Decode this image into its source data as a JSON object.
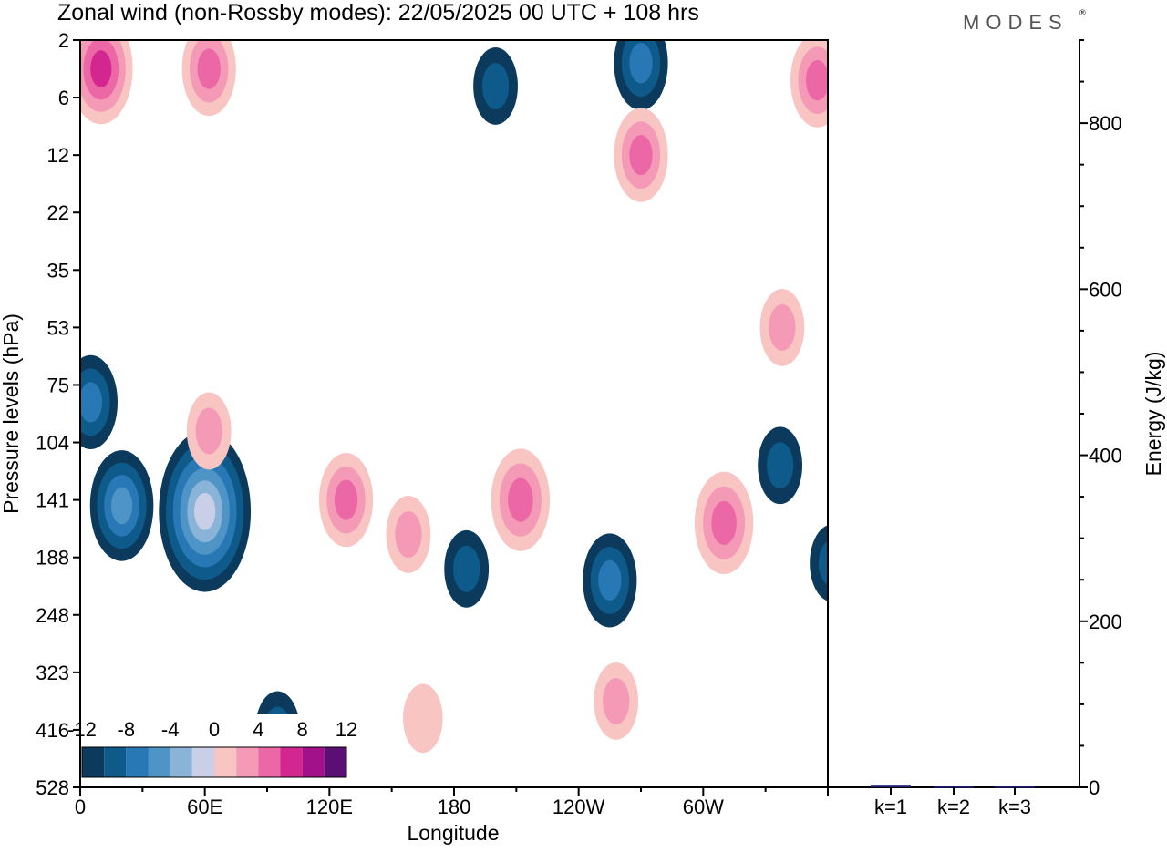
{
  "title": "Zonal wind (non-Rossby modes):  22/05/2025  00 UTC  + 108 hrs",
  "brand": "MODES",
  "colors": {
    "neg": [
      "#0b3a5c",
      "#0e5a8a",
      "#2878b5",
      "#4e94c6",
      "#8ab3d8",
      "#c9cfe6"
    ],
    "pos": [
      "#f8c5c3",
      "#f49ab7",
      "#ec67a6",
      "#d4268f",
      "#a3118a",
      "#5b0e73"
    ]
  },
  "chart_data": [
    {
      "type": "heatmap",
      "xlabel": "Longitude",
      "ylabel": "Pressure levels (hPa)",
      "x_ticks": [
        "0",
        "60E",
        "120E",
        "180",
        "120W",
        "60W"
      ],
      "y_ticks": [
        "2",
        "6",
        "12",
        "22",
        "35",
        "53",
        "75",
        "104",
        "141",
        "188",
        "248",
        "323",
        "416",
        "528"
      ],
      "colorbar": {
        "labels": [
          "-12",
          "-8",
          "-4",
          "0",
          "4",
          "8",
          "12"
        ],
        "levels": [
          -12,
          -10,
          -8,
          -6,
          -4,
          -2,
          0,
          2,
          4,
          6,
          8,
          10,
          12
        ]
      },
      "features": [
        {
          "lon": 60,
          "lev": 8.2,
          "value": -14
        },
        {
          "lon": 20,
          "lev": 8.1,
          "value": -8
        },
        {
          "lon": 5,
          "lev": 6.3,
          "value": -6
        },
        {
          "lon": 95,
          "lev": 12.0,
          "value": -4
        },
        {
          "lon": 270,
          "lev": 0.4,
          "value": -6
        },
        {
          "lon": 200,
          "lev": 0.8,
          "value": -4
        },
        {
          "lon": 255,
          "lev": 9.4,
          "value": -6
        },
        {
          "lon": 186,
          "lev": 9.2,
          "value": -4
        },
        {
          "lon": 337,
          "lev": 7.4,
          "value": -4
        },
        {
          "lon": 362,
          "lev": 9.1,
          "value": -4
        },
        {
          "lon": 128,
          "lev": 8.0,
          "value": 6
        },
        {
          "lon": 158,
          "lev": 8.6,
          "value": 4
        },
        {
          "lon": 212,
          "lev": 8.0,
          "value": 7
        },
        {
          "lon": 310,
          "lev": 8.4,
          "value": 7
        },
        {
          "lon": 258,
          "lev": 11.5,
          "value": 4
        },
        {
          "lon": 62,
          "lev": 6.8,
          "value": 4
        },
        {
          "lon": 270,
          "lev": 2.0,
          "value": 6
        },
        {
          "lon": 10,
          "lev": 0.5,
          "value": 8
        },
        {
          "lon": 62,
          "lev": 0.5,
          "value": 6
        },
        {
          "lon": 355,
          "lev": 0.7,
          "value": 6
        },
        {
          "lon": 165,
          "lev": 11.8,
          "value": 3
        },
        {
          "lon": 338,
          "lev": 5.0,
          "value": 4
        }
      ]
    },
    {
      "type": "bar",
      "categories": [
        "k=1",
        "k=2",
        "k=3"
      ],
      "values": [
        2,
        1,
        1
      ],
      "ylabel": "Energy (J/kg)",
      "y_ticks": [
        "0",
        "200",
        "400",
        "600",
        "800"
      ],
      "ylim": [
        0,
        900
      ],
      "bar_color": "#1f1f7a"
    }
  ]
}
